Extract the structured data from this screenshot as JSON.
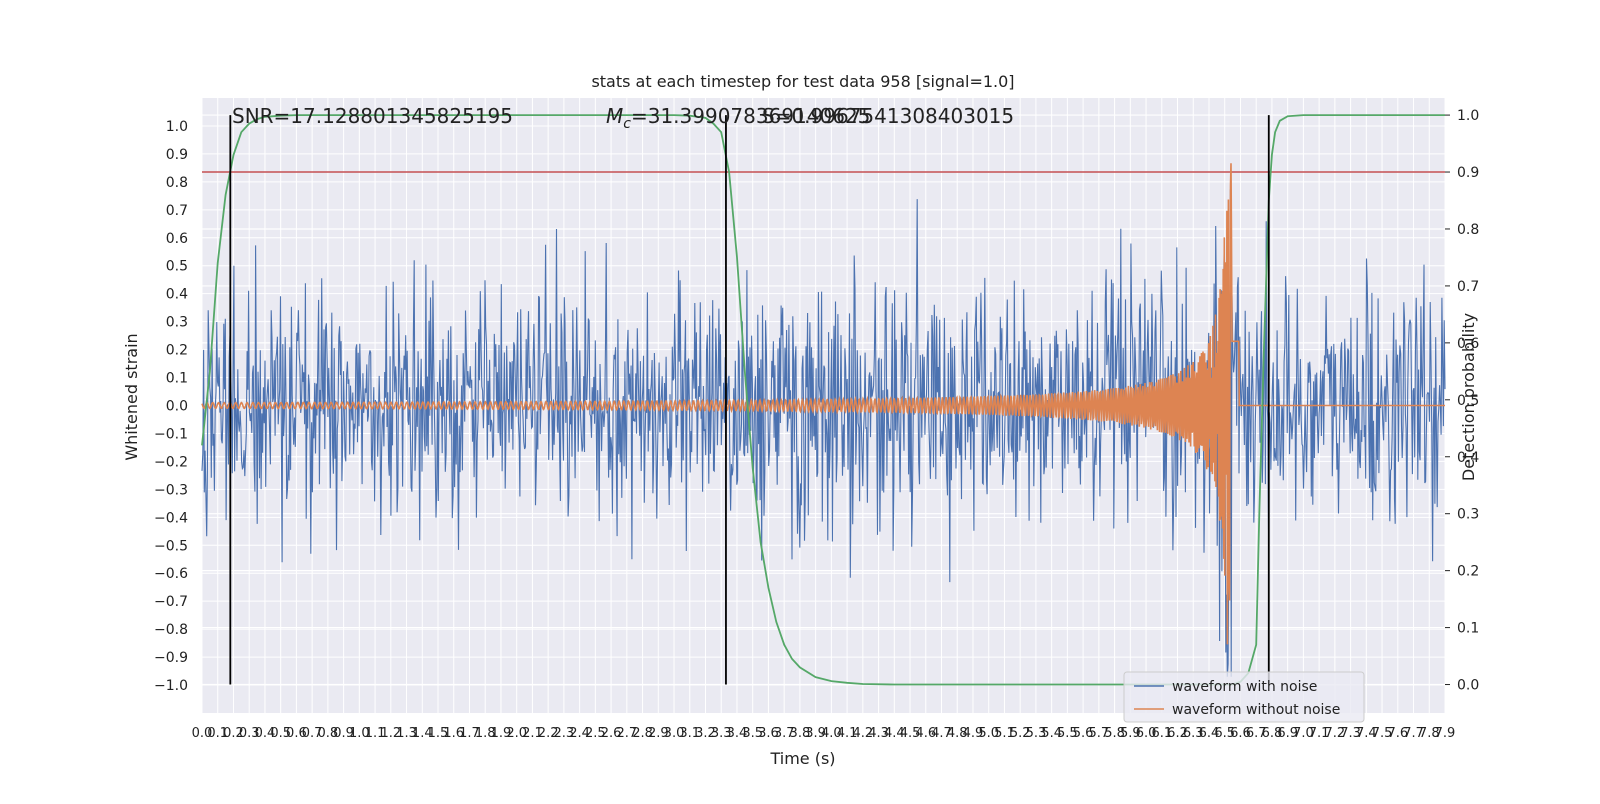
{
  "chart_data": {
    "type": "line",
    "title": "stats at each timestep for test data 958 [signal=1.0]",
    "xlabel": "Time (s)",
    "ylabel": "Whitened strain",
    "y2label": "Detection probability",
    "xlim": [
      0.0,
      7.9
    ],
    "ylim": [
      -1.1,
      1.1
    ],
    "y2lim": [
      -0.05,
      1.03
    ],
    "grid": true,
    "legend_position": "bottom-right",
    "x_tick_labels": [
      "0.0",
      "0.1",
      "0.2",
      "0.3",
      "0.4",
      "0.5",
      "0.6",
      "0.7",
      "0.8",
      "0.9",
      "1.0",
      "1.1",
      "1.2",
      "1.3",
      "1.4",
      "1.5",
      "1.6",
      "1.7",
      "1.8",
      "1.9",
      "2.0",
      "2.1",
      "2.2",
      "2.3",
      "2.4",
      "2.5",
      "2.6",
      "2.7",
      "2.8",
      "2.9",
      "3.0",
      "3.1",
      "3.2",
      "3.3",
      "3.4",
      "3.5",
      "3.6",
      "3.7",
      "3.8",
      "3.9",
      "4.0",
      "4.1",
      "4.2",
      "4.3",
      "4.4",
      "4.5",
      "4.6",
      "4.7",
      "4.8",
      "4.9",
      "5.0",
      "5.1",
      "5.2",
      "5.3",
      "5.4",
      "5.5",
      "5.6",
      "5.7",
      "5.8",
      "5.9",
      "6.0",
      "6.1",
      "6.2",
      "6.3",
      "6.4",
      "6.5",
      "6.6",
      "6.7",
      "6.8",
      "6.9",
      "7.0",
      "7.1",
      "7.2",
      "7.3",
      "7.4",
      "7.5",
      "7.6",
      "7.7",
      "7.8",
      "7.9"
    ],
    "y_tick_labels": [
      "1.0",
      "0.9",
      "0.8",
      "0.7",
      "0.6",
      "0.5",
      "0.4",
      "0.3",
      "0.2",
      "0.1",
      "0.0",
      "−0.1",
      "−0.2",
      "−0.3",
      "−0.4",
      "−0.5",
      "−0.6",
      "−0.7",
      "−0.8",
      "−0.9",
      "−1.0"
    ],
    "y_tick_values": [
      1.0,
      0.9,
      0.8,
      0.7,
      0.6,
      0.5,
      0.4,
      0.3,
      0.2,
      0.1,
      0.0,
      -0.1,
      -0.2,
      -0.3,
      -0.4,
      -0.5,
      -0.6,
      -0.7,
      -0.8,
      -0.9,
      -1.0
    ],
    "y2_tick_labels": [
      "1.0",
      "0.9",
      "0.8",
      "0.7",
      "0.6",
      "0.5",
      "0.4",
      "0.3",
      "0.2",
      "0.1",
      "0.0"
    ],
    "y2_tick_values": [
      1.0,
      0.9,
      0.8,
      0.7,
      0.6,
      0.5,
      0.4,
      0.3,
      0.2,
      0.1,
      0.0
    ],
    "annotations": {
      "snr": "SNR=17.128801345825195",
      "mc_symbol": "M",
      "mc_sub": "c",
      "mc_value": "=31.399078369140625",
      "overlap_text": "S=0.9967541308403015"
    },
    "threshold_line": {
      "y2": 0.9,
      "color": "#c44e52"
    },
    "vertical_markers": {
      "x": [
        0.18,
        3.33,
        6.78
      ],
      "color": "#000000"
    },
    "series": [
      {
        "name": "waveform with noise",
        "color": "#4c72b0",
        "kind": "noisy_strain",
        "approx_envelope": {
          "typical": 0.35,
          "peak": 0.97,
          "min": -0.97
        }
      },
      {
        "name": "waveform without noise",
        "color": "#dd8452",
        "kind": "chirp",
        "merger_time": 6.55,
        "peak_amplitude": 0.9,
        "early_amplitude": 0.01
      },
      {
        "name": "detection probability",
        "color": "#55a868",
        "kind": "probability",
        "axis": "right",
        "x": [
          0.0,
          0.05,
          0.1,
          0.15,
          0.2,
          0.25,
          0.3,
          0.35,
          0.4,
          0.5,
          0.6,
          0.8,
          1.0,
          1.5,
          2.0,
          2.5,
          3.0,
          3.1,
          3.2,
          3.25,
          3.3,
          3.35,
          3.4,
          3.45,
          3.5,
          3.55,
          3.6,
          3.65,
          3.7,
          3.75,
          3.8,
          3.9,
          4.0,
          4.1,
          4.2,
          4.4,
          4.6,
          5.0,
          5.5,
          6.0,
          6.4,
          6.5,
          6.55,
          6.6,
          6.65,
          6.7,
          6.72,
          6.75,
          6.78,
          6.8,
          6.82,
          6.85,
          6.9,
          7.0,
          7.5,
          7.9
        ],
        "y": [
          0.42,
          0.55,
          0.74,
          0.86,
          0.93,
          0.97,
          0.985,
          0.993,
          0.997,
          0.999,
          1.0,
          1.0,
          1.0,
          1.0,
          1.0,
          1.0,
          1.0,
          0.999,
          0.995,
          0.985,
          0.97,
          0.9,
          0.75,
          0.55,
          0.38,
          0.25,
          0.17,
          0.11,
          0.07,
          0.045,
          0.03,
          0.013,
          0.006,
          0.003,
          0.001,
          0.0,
          0.0,
          0.0,
          0.0,
          0.0,
          0.0,
          0.0,
          0.0,
          0.005,
          0.02,
          0.07,
          0.3,
          0.6,
          0.85,
          0.93,
          0.97,
          0.99,
          0.998,
          1.0,
          1.0,
          1.0
        ]
      }
    ]
  }
}
